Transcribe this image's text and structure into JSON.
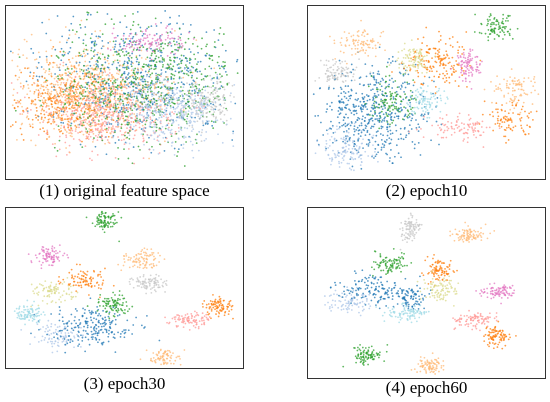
{
  "palette": {
    "blue": "#1f77b4",
    "lightblue": "#aec7e8",
    "orange": "#ff7f0e",
    "peach": "#ffbb78",
    "green": "#2ca02c",
    "pink": "#ff9896",
    "gray": "#c7c7c7",
    "magenta": "#e377c2",
    "cyan": "#9edae5",
    "olive": "#dbdb8d"
  },
  "chart_data": [
    {
      "type": "scatter",
      "caption": "(1) original feature space",
      "clusters": [
        {
          "color": "blue",
          "cx": 0.55,
          "cy": 0.42,
          "rx": 0.4,
          "ry": 0.35
        },
        {
          "color": "orange",
          "cx": 0.25,
          "cy": 0.55,
          "rx": 0.22,
          "ry": 0.2
        },
        {
          "color": "pink",
          "cx": 0.42,
          "cy": 0.62,
          "rx": 0.28,
          "ry": 0.2
        },
        {
          "color": "peach",
          "cx": 0.35,
          "cy": 0.5,
          "rx": 0.32,
          "ry": 0.28
        },
        {
          "color": "green",
          "cx": 0.6,
          "cy": 0.45,
          "rx": 0.38,
          "ry": 0.35
        },
        {
          "color": "gray",
          "cx": 0.85,
          "cy": 0.55,
          "rx": 0.12,
          "ry": 0.14
        },
        {
          "color": "lightblue",
          "cx": 0.7,
          "cy": 0.6,
          "rx": 0.22,
          "ry": 0.2
        },
        {
          "color": "magenta",
          "cx": 0.6,
          "cy": 0.2,
          "rx": 0.15,
          "ry": 0.08
        }
      ]
    },
    {
      "type": "scatter",
      "caption": "(2) epoch10",
      "clusters": [
        {
          "color": "blue",
          "cx": 0.28,
          "cy": 0.62,
          "rx": 0.22,
          "ry": 0.26
        },
        {
          "color": "lightblue",
          "cx": 0.15,
          "cy": 0.82,
          "rx": 0.12,
          "ry": 0.12
        },
        {
          "color": "green",
          "cx": 0.35,
          "cy": 0.55,
          "rx": 0.1,
          "ry": 0.12
        },
        {
          "color": "green",
          "cx": 0.8,
          "cy": 0.12,
          "rx": 0.08,
          "ry": 0.08
        },
        {
          "color": "peach",
          "cx": 0.22,
          "cy": 0.22,
          "rx": 0.1,
          "ry": 0.08
        },
        {
          "color": "peach",
          "cx": 0.88,
          "cy": 0.48,
          "rx": 0.1,
          "ry": 0.1
        },
        {
          "color": "orange",
          "cx": 0.55,
          "cy": 0.32,
          "rx": 0.13,
          "ry": 0.14
        },
        {
          "color": "orange",
          "cx": 0.85,
          "cy": 0.65,
          "rx": 0.1,
          "ry": 0.1
        },
        {
          "color": "pink",
          "cx": 0.65,
          "cy": 0.7,
          "rx": 0.15,
          "ry": 0.07
        },
        {
          "color": "gray",
          "cx": 0.12,
          "cy": 0.38,
          "rx": 0.08,
          "ry": 0.07
        },
        {
          "color": "cyan",
          "cx": 0.5,
          "cy": 0.55,
          "rx": 0.08,
          "ry": 0.08
        },
        {
          "color": "magenta",
          "cx": 0.68,
          "cy": 0.35,
          "rx": 0.05,
          "ry": 0.1
        },
        {
          "color": "olive",
          "cx": 0.45,
          "cy": 0.3,
          "rx": 0.07,
          "ry": 0.07
        }
      ]
    },
    {
      "type": "scatter",
      "caption": "(3) epoch30",
      "clusters": [
        {
          "color": "lightblue",
          "cx": 0.22,
          "cy": 0.8,
          "rx": 0.1,
          "ry": 0.08
        },
        {
          "color": "blue",
          "cx": 0.35,
          "cy": 0.75,
          "rx": 0.18,
          "ry": 0.13
        },
        {
          "color": "cyan",
          "cx": 0.1,
          "cy": 0.66,
          "rx": 0.06,
          "ry": 0.06
        },
        {
          "color": "olive",
          "cx": 0.2,
          "cy": 0.52,
          "rx": 0.08,
          "ry": 0.06
        },
        {
          "color": "orange",
          "cx": 0.33,
          "cy": 0.45,
          "rx": 0.09,
          "ry": 0.08
        },
        {
          "color": "green",
          "cx": 0.45,
          "cy": 0.6,
          "rx": 0.07,
          "ry": 0.07
        },
        {
          "color": "green",
          "cx": 0.42,
          "cy": 0.08,
          "rx": 0.06,
          "ry": 0.06
        },
        {
          "color": "magenta",
          "cx": 0.18,
          "cy": 0.3,
          "rx": 0.06,
          "ry": 0.06
        },
        {
          "color": "peach",
          "cx": 0.57,
          "cy": 0.32,
          "rx": 0.08,
          "ry": 0.06
        },
        {
          "color": "gray",
          "cx": 0.6,
          "cy": 0.47,
          "rx": 0.07,
          "ry": 0.05
        },
        {
          "color": "orange",
          "cx": 0.9,
          "cy": 0.62,
          "rx": 0.06,
          "ry": 0.06
        },
        {
          "color": "pink",
          "cx": 0.78,
          "cy": 0.7,
          "rx": 0.08,
          "ry": 0.05
        },
        {
          "color": "peach",
          "cx": 0.67,
          "cy": 0.94,
          "rx": 0.07,
          "ry": 0.06
        }
      ]
    },
    {
      "type": "scatter",
      "caption": "(4) epoch60",
      "clusters": [
        {
          "color": "lightblue",
          "cx": 0.18,
          "cy": 0.55,
          "rx": 0.1,
          "ry": 0.07
        },
        {
          "color": "blue",
          "cx": 0.26,
          "cy": 0.47,
          "rx": 0.14,
          "ry": 0.1
        },
        {
          "color": "blue",
          "cx": 0.42,
          "cy": 0.52,
          "rx": 0.07,
          "ry": 0.07
        },
        {
          "color": "cyan",
          "cx": 0.42,
          "cy": 0.62,
          "rx": 0.08,
          "ry": 0.05
        },
        {
          "color": "green",
          "cx": 0.35,
          "cy": 0.33,
          "rx": 0.08,
          "ry": 0.07
        },
        {
          "color": "green",
          "cx": 0.25,
          "cy": 0.87,
          "rx": 0.06,
          "ry": 0.06
        },
        {
          "color": "orange",
          "cx": 0.55,
          "cy": 0.37,
          "rx": 0.06,
          "ry": 0.07
        },
        {
          "color": "olive",
          "cx": 0.56,
          "cy": 0.48,
          "rx": 0.07,
          "ry": 0.07
        },
        {
          "color": "gray",
          "cx": 0.43,
          "cy": 0.12,
          "rx": 0.04,
          "ry": 0.07
        },
        {
          "color": "peach",
          "cx": 0.67,
          "cy": 0.16,
          "rx": 0.07,
          "ry": 0.05
        },
        {
          "color": "magenta",
          "cx": 0.8,
          "cy": 0.49,
          "rx": 0.08,
          "ry": 0.04
        },
        {
          "color": "pink",
          "cx": 0.7,
          "cy": 0.66,
          "rx": 0.08,
          "ry": 0.05
        },
        {
          "color": "orange",
          "cx": 0.8,
          "cy": 0.76,
          "rx": 0.06,
          "ry": 0.06
        },
        {
          "color": "peach",
          "cx": 0.51,
          "cy": 0.93,
          "rx": 0.05,
          "ry": 0.05
        }
      ]
    }
  ]
}
